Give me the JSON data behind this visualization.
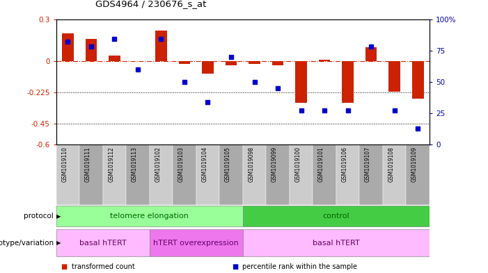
{
  "title": "GDS4964 / 230676_s_at",
  "samples": [
    "GSM1019110",
    "GSM1019111",
    "GSM1019112",
    "GSM1019113",
    "GSM1019102",
    "GSM1019103",
    "GSM1019104",
    "GSM1019105",
    "GSM1019098",
    "GSM1019099",
    "GSM1019100",
    "GSM1019101",
    "GSM1019106",
    "GSM1019107",
    "GSM1019108",
    "GSM1019109"
  ],
  "red_bars": [
    0.2,
    0.16,
    0.04,
    0.0,
    0.22,
    -0.02,
    -0.09,
    -0.03,
    -0.02,
    -0.03,
    -0.3,
    0.01,
    -0.3,
    0.1,
    -0.22,
    -0.27
  ],
  "blue_squares_pct": [
    82,
    78,
    84,
    60,
    84,
    50,
    34,
    70,
    50,
    45,
    27,
    27,
    27,
    78,
    27,
    13
  ],
  "ylim_left": [
    -0.6,
    0.3
  ],
  "ylim_right": [
    0,
    100
  ],
  "yticks_left": [
    -0.6,
    -0.45,
    -0.225,
    0.0,
    0.3
  ],
  "yticks_right": [
    0,
    25,
    50,
    75,
    100
  ],
  "ytick_labels_left": [
    "-0.6",
    "-0.45",
    "-0.225",
    "0",
    "0.3"
  ],
  "ytick_labels_right": [
    "0",
    "25",
    "50",
    "75",
    "100%"
  ],
  "hline_y": 0.0,
  "dotted_lines": [
    -0.225,
    -0.45
  ],
  "bar_color": "#cc2200",
  "square_color": "#0000cc",
  "protocol_groups": [
    {
      "label": "telomere elongation",
      "start": 0,
      "end": 8,
      "color": "#99ff99"
    },
    {
      "label": "control",
      "start": 8,
      "end": 16,
      "color": "#44cc44"
    }
  ],
  "genotype_groups": [
    {
      "label": "basal hTERT",
      "start": 0,
      "end": 4,
      "color": "#ffbbff"
    },
    {
      "label": "hTERT overexpression",
      "start": 4,
      "end": 8,
      "color": "#ee77ee"
    },
    {
      "label": "basal hTERT",
      "start": 8,
      "end": 16,
      "color": "#ffbbff"
    }
  ],
  "legend_items": [
    {
      "label": "transformed count",
      "color": "#cc2200"
    },
    {
      "label": "percentile rank within the sample",
      "color": "#0000cc"
    }
  ],
  "bg_color": "#ffffff",
  "tick_label_color_left": "#cc2200",
  "tick_label_color_right": "#0000aa",
  "protocol_text_color": "#006600",
  "genotype_text_color": "#660066"
}
